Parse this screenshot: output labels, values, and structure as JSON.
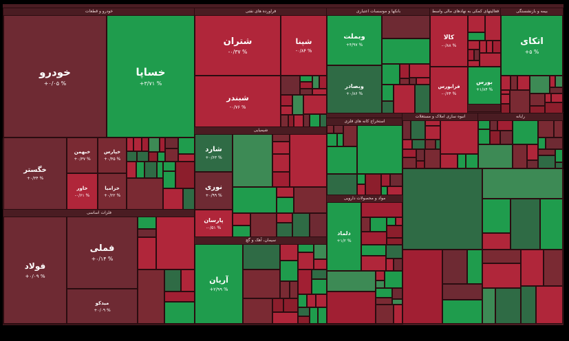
{
  "sectors": [
    {
      "title": "خودرو و قطعات",
      "tiles": [
        {
          "label": "خودرو",
          "change": "+۰/۰۵ %"
        },
        {
          "label": "خساپا",
          "change": "+۳/۷۱ %"
        },
        {
          "label": "خگستر",
          "change": "+۰/۳۴ %"
        },
        {
          "label": "خبهمن",
          "change": "+۰/۳۷ %"
        },
        {
          "label": "خپارس",
          "change": "+۰/۴۵ %"
        },
        {
          "label": "خاور",
          "change": "-۰/۶۱ %"
        },
        {
          "label": "خزامیا",
          "change": "+۰/۲۲ %"
        }
      ]
    },
    {
      "title": "فلزات اساسی",
      "tiles": [
        {
          "label": "فولاد",
          "change": "+۰/۰۹ %"
        },
        {
          "label": "فملی",
          "change": "+۰/۱۴ %"
        },
        {
          "label": "میدکو",
          "change": "+۰/۰۹ %"
        }
      ]
    },
    {
      "title": "فراورده های نفتی",
      "tiles": [
        {
          "label": "شتران",
          "change": "-۰/۳۷ %"
        },
        {
          "label": "شپنا",
          "change": "-۰/۸۴ %"
        },
        {
          "label": "شبندر",
          "change": "-۰/۷۶ %"
        }
      ]
    },
    {
      "title": "شیمیایی",
      "tiles": [
        {
          "label": "شارد",
          "change": "+۰/۶۳ %"
        },
        {
          "label": "نوری",
          "change": "+۰/۹۹ %"
        },
        {
          "label": "پارسان",
          "change": "-۰/۵۱ %"
        }
      ]
    },
    {
      "title": "سیمان، آهک و گچ",
      "tiles": [
        {
          "label": "آریان",
          "change": "+۲/۹۹ %"
        }
      ]
    },
    {
      "title": "بانکها و موسسات اعتباری",
      "tiles": [
        {
          "label": "وبملت",
          "change": "+۴/۹۷ %"
        },
        {
          "label": "وبصادر",
          "change": "+۰/۸۶ %"
        }
      ]
    },
    {
      "title": "فعالیتهای کمکی به نهادهای مالی واسط",
      "tiles": [
        {
          "label": "کالا",
          "change": "-۰/۸۸ %"
        },
        {
          "label": "فرابورس",
          "change": "-۰/۶۴ %"
        },
        {
          "label": "بورس",
          "change": "+۱/۸۴ %"
        }
      ]
    },
    {
      "title": "بیمه و بازنشستگی",
      "tiles": [
        {
          "label": "اتکای",
          "change": "+۵ %"
        }
      ]
    },
    {
      "title": "استخراج کانه های فلزی",
      "tiles": []
    },
    {
      "title": "انبوه سازی املاک و مستغلات",
      "tiles": []
    },
    {
      "title": "رایانه",
      "tiles": []
    },
    {
      "title": "مواد و محصولات دارویی",
      "tiles": [
        {
          "label": "دلماد",
          "change": "+۱/۲ %"
        }
      ]
    }
  ]
}
